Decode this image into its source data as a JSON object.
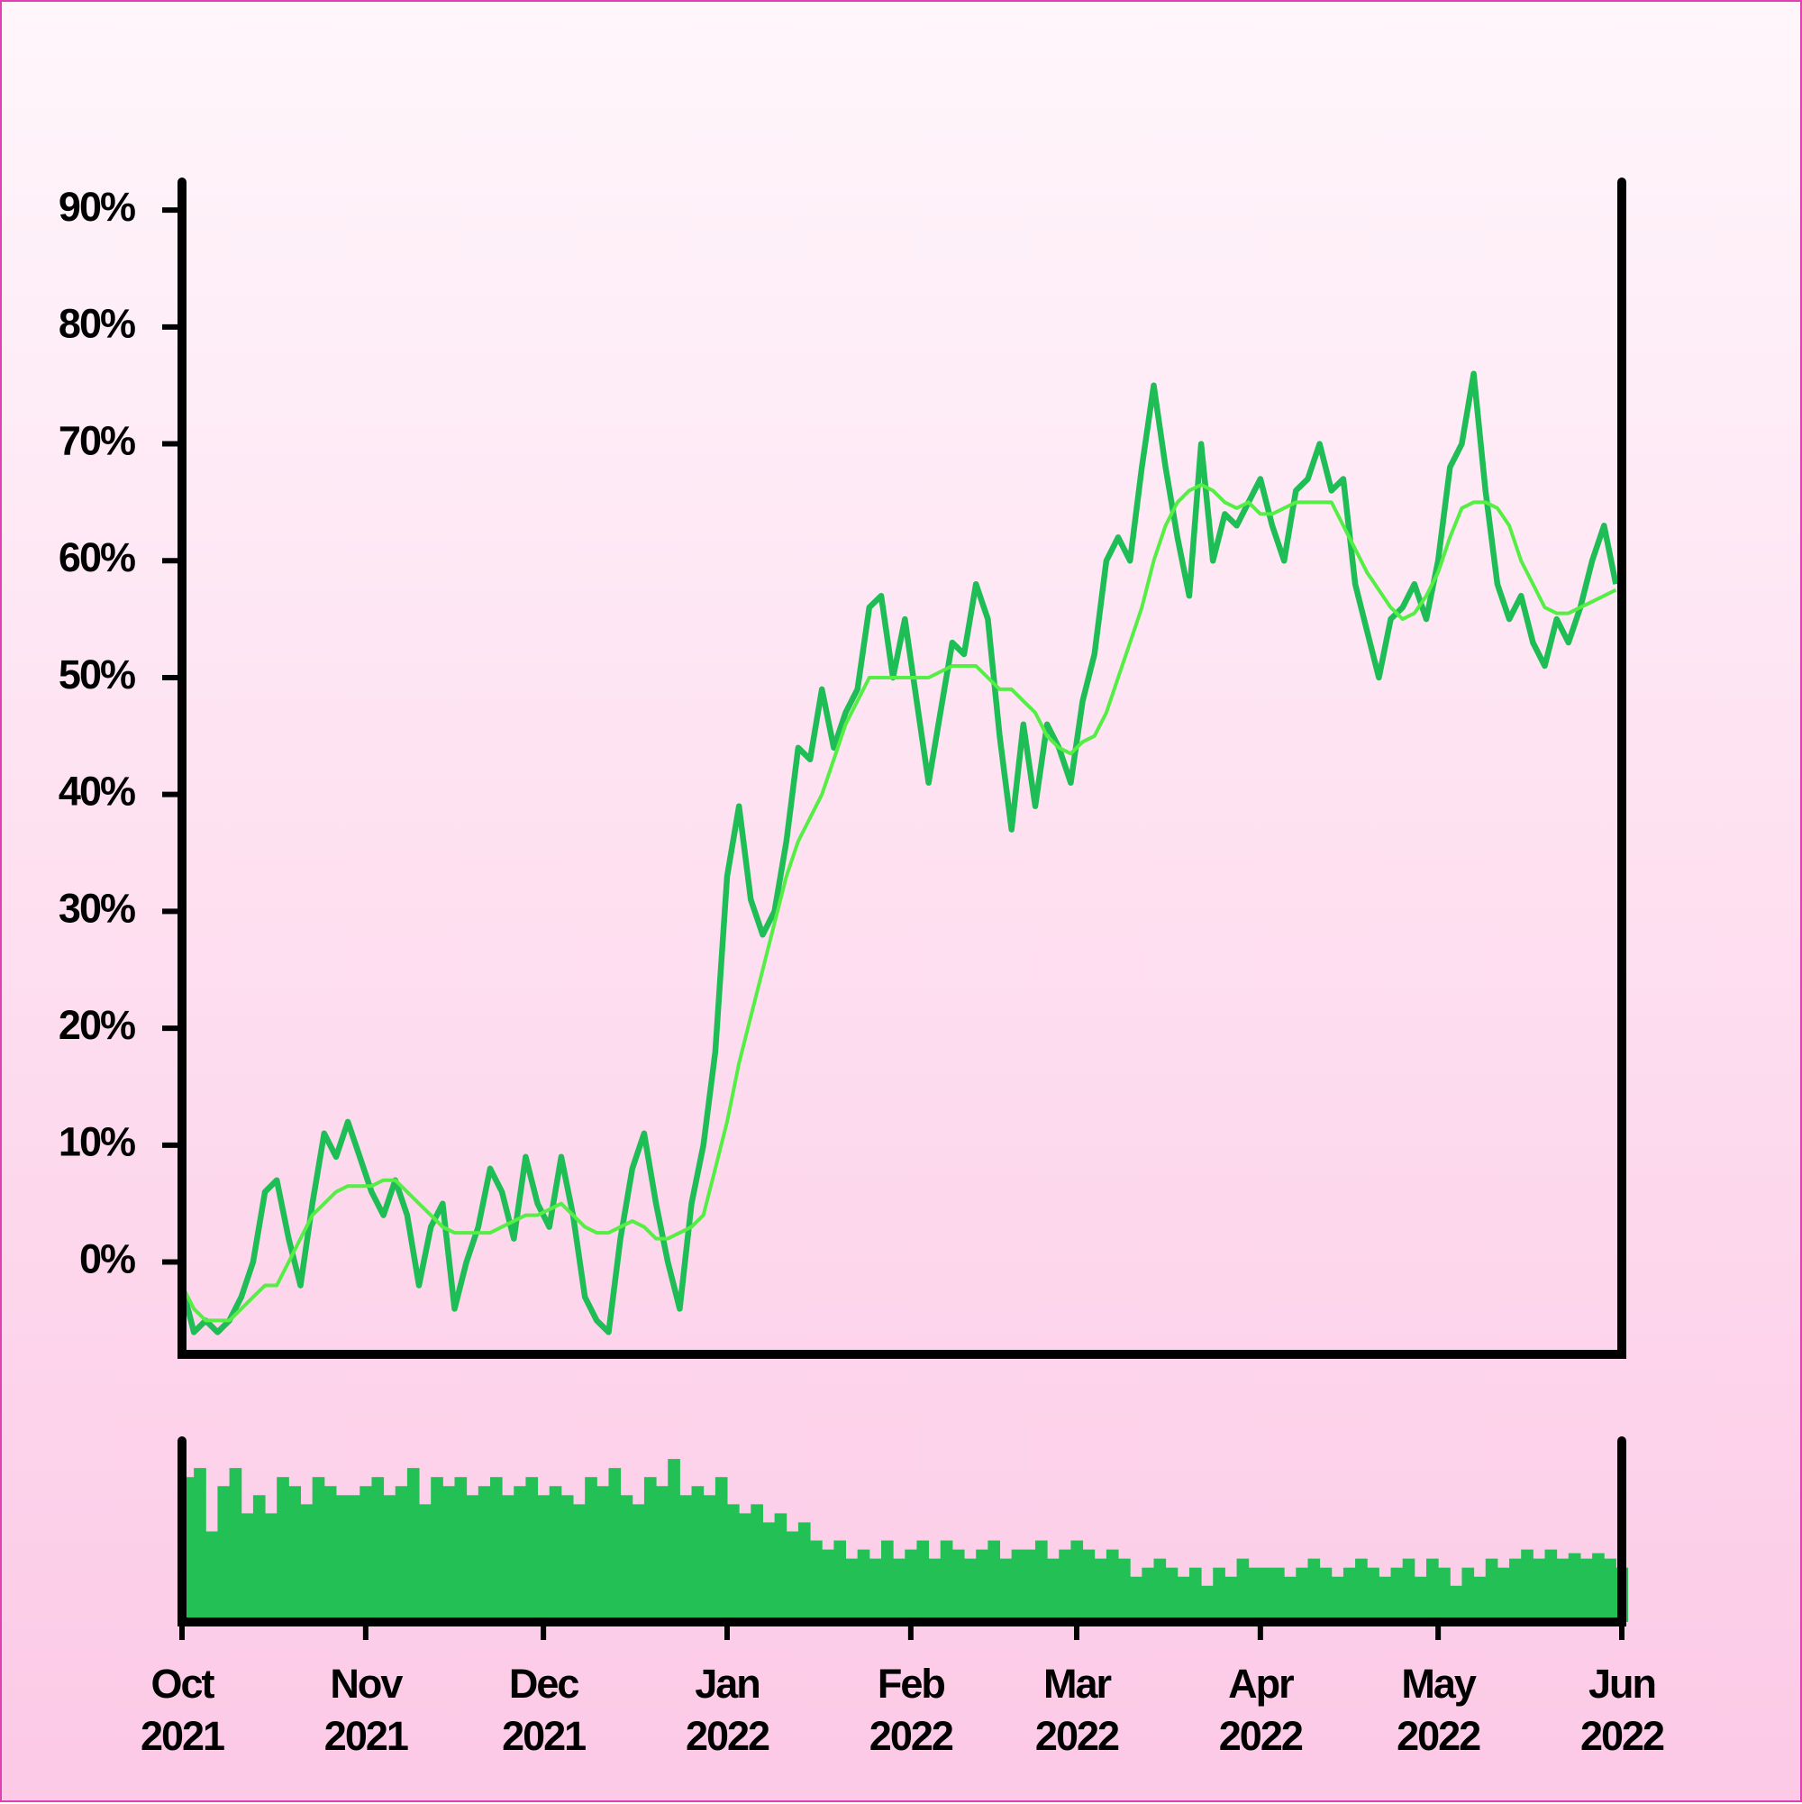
{
  "chart_data": [
    {
      "type": "line",
      "ylim": [
        -7.9,
        92.4
      ],
      "yticks": [
        {
          "value": 0,
          "label": "0%"
        },
        {
          "value": 10,
          "label": "10%"
        },
        {
          "value": 20,
          "label": "20%"
        },
        {
          "value": 30,
          "label": "30%"
        },
        {
          "value": 40,
          "label": "40%"
        },
        {
          "value": 50,
          "label": "50%"
        },
        {
          "value": 60,
          "label": "60%"
        },
        {
          "value": 70,
          "label": "70%"
        },
        {
          "value": 80,
          "label": "80%"
        },
        {
          "value": 90,
          "label": "90%"
        }
      ],
      "xlim": [
        0,
        121.5
      ],
      "series": [
        {
          "color": "#1fbd55",
          "values": [
            -2,
            -6,
            -5,
            -6,
            -5,
            -3,
            0,
            6,
            7,
            2,
            -2,
            5,
            11,
            9,
            12,
            9,
            6,
            4,
            7,
            4,
            -2,
            3,
            5,
            -4,
            0,
            3,
            8,
            6,
            2,
            9,
            5,
            3,
            9,
            4,
            -3,
            -5,
            -6,
            2,
            8,
            11,
            5,
            0,
            -4,
            5,
            10,
            18,
            33,
            39,
            31,
            28,
            30,
            36,
            44,
            43,
            49,
            44,
            47,
            49,
            56,
            57,
            50,
            55,
            48,
            41,
            47,
            53,
            52,
            58,
            55,
            45,
            37,
            46,
            39,
            46,
            44,
            41,
            48,
            52,
            60,
            62,
            60,
            68,
            75,
            68,
            62,
            57,
            70,
            60,
            64,
            63,
            65,
            67,
            63,
            60,
            66,
            67,
            70,
            66,
            67,
            58,
            54,
            50,
            55,
            56,
            58,
            55,
            60,
            68,
            70,
            76,
            66,
            58,
            55,
            57,
            53,
            51,
            55,
            53,
            56,
            60,
            63,
            58
          ]
        },
        {
          "color": "#55ee44",
          "values": [
            -2,
            -4,
            -5,
            -5,
            -5,
            -4,
            -3,
            -2,
            -2,
            0,
            2,
            4,
            5,
            6,
            6.5,
            6.5,
            6.5,
            7,
            7,
            6,
            5,
            4,
            3,
            2.5,
            2.5,
            2.5,
            2.5,
            3,
            3.5,
            4,
            4,
            4.5,
            5,
            4,
            3,
            2.5,
            2.5,
            3,
            3.5,
            3,
            2,
            2,
            2.5,
            3,
            4,
            8,
            12,
            17,
            21,
            25,
            29,
            33,
            36,
            38,
            40,
            43,
            46,
            48,
            50,
            50,
            50,
            50,
            50,
            50,
            50.5,
            51,
            51,
            51,
            50,
            49,
            49,
            48,
            47,
            45,
            44,
            43.5,
            44.5,
            45,
            47,
            50,
            53,
            56,
            60,
            63,
            65,
            66,
            66.5,
            66,
            65,
            64.5,
            65,
            64,
            64,
            64.5,
            65,
            65,
            65,
            65,
            63,
            61,
            59,
            57.5,
            56,
            55,
            55.5,
            57,
            59,
            62,
            64.5,
            65,
            65,
            64.5,
            63,
            60,
            58,
            56,
            55.5,
            55.5,
            56,
            56.5,
            57,
            57.5
          ]
        }
      ]
    },
    {
      "type": "bar",
      "color": "#22c055",
      "ylim": [
        0,
        100
      ],
      "xlim": [
        0,
        121.5
      ],
      "xticks": [
        {
          "value": 0,
          "label": "Oct 2021"
        },
        {
          "value": 15.5,
          "label": "Nov 2021"
        },
        {
          "value": 30.5,
          "label": "Dec 2021"
        },
        {
          "value": 46,
          "label": "Jan 2022"
        },
        {
          "value": 61.5,
          "label": "Feb 2022"
        },
        {
          "value": 75.5,
          "label": "Mar 2022"
        },
        {
          "value": 91,
          "label": "Apr 2022"
        },
        {
          "value": 106,
          "label": "May 2022"
        },
        {
          "value": 121.5,
          "label": "Jun 2022"
        }
      ],
      "values": [
        80,
        85,
        50,
        75,
        85,
        60,
        70,
        60,
        80,
        75,
        65,
        80,
        75,
        70,
        70,
        75,
        80,
        70,
        75,
        85,
        65,
        80,
        75,
        80,
        70,
        75,
        80,
        70,
        75,
        80,
        70,
        75,
        70,
        65,
        80,
        75,
        85,
        70,
        65,
        80,
        75,
        90,
        70,
        75,
        70,
        80,
        65,
        60,
        65,
        55,
        60,
        50,
        55,
        45,
        40,
        45,
        35,
        40,
        35,
        45,
        35,
        40,
        45,
        35,
        45,
        40,
        35,
        40,
        45,
        35,
        40,
        40,
        45,
        35,
        40,
        45,
        40,
        35,
        40,
        35,
        25,
        30,
        35,
        30,
        25,
        30,
        20,
        30,
        25,
        35,
        30,
        30,
        30,
        25,
        30,
        35,
        30,
        25,
        30,
        35,
        30,
        25,
        30,
        35,
        25,
        35,
        30,
        20,
        30,
        25,
        35,
        30,
        35,
        40,
        35,
        40,
        35,
        38,
        35,
        38,
        35,
        30
      ]
    }
  ]
}
